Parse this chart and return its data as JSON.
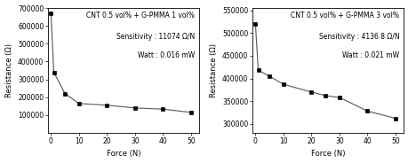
{
  "left": {
    "title": "CNT 0.5 vol% + G-PMMA 1 vol%",
    "sensitivity": "Sensitivity : 11074 Ω/N",
    "watt": "Watt : 0.016 mW",
    "x": [
      0,
      1,
      5,
      10,
      20,
      30,
      40,
      50
    ],
    "y": [
      670000,
      340000,
      220000,
      165000,
      155000,
      140000,
      133000,
      115000
    ],
    "xlabel": "Force (N)",
    "ylabel": "Resistance (Ω)",
    "ylim": [
      0,
      700000
    ],
    "yticks": [
      100000,
      200000,
      300000,
      400000,
      500000,
      600000,
      700000
    ],
    "xlim": [
      -1,
      53
    ]
  },
  "right": {
    "title": "CNT 0.5 vol% + G-PMMA 3 vol%",
    "sensitivity": "Sensitivity : 4136.8 Ω/N",
    "watt": "Watt : 0.021 mW",
    "x": [
      0,
      1,
      5,
      10,
      20,
      25,
      30,
      40,
      50
    ],
    "y": [
      520000,
      418000,
      405000,
      387000,
      370000,
      362000,
      358000,
      328000,
      312000
    ],
    "xlabel": "Force (N)",
    "ylabel": "Resistance (Ω)",
    "ylim": [
      280000,
      555000
    ],
    "yticks": [
      300000,
      350000,
      400000,
      450000,
      500000,
      550000
    ],
    "xlim": [
      -1,
      53
    ]
  },
  "line_color": "#555555",
  "marker": "s",
  "markersize": 2.5,
  "linewidth": 0.8,
  "bg_color": "#ffffff",
  "annotation_fontsize": 5.5,
  "label_fontsize": 6,
  "tick_fontsize": 5.5
}
